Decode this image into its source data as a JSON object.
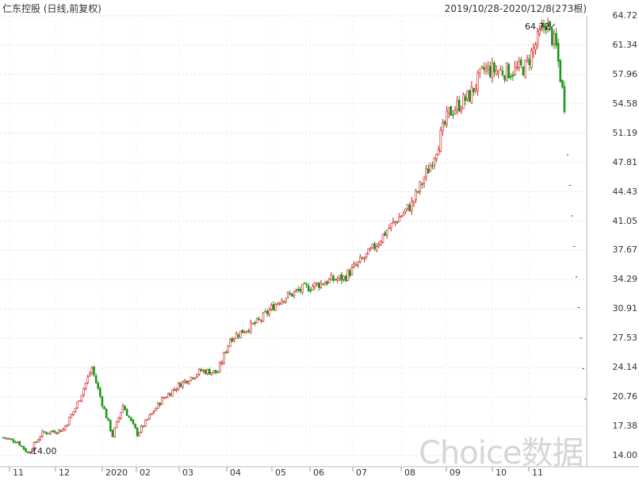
{
  "header": {
    "title": "仁东控股 (日线,前复权)",
    "date_range": "2019/10/28-2020/12/8(273根)"
  },
  "watermark": "Choice数据",
  "annotations": {
    "max_label": "64.72",
    "min_label": "14.00"
  },
  "colors": {
    "up": "#d21e1e",
    "down": "#1a9a1a",
    "grid": "#dddddd",
    "axis_text": "#333333"
  },
  "chart_data": {
    "type": "candlestick",
    "title": "仁东控股 (日线,前复权)",
    "y_ticks": [
      "64.72",
      "61.34",
      "57.96",
      "54.58",
      "51.19",
      "47.81",
      "44.43",
      "41.05",
      "37.67",
      "34.29",
      "30.91",
      "27.53",
      "24.14",
      "20.76",
      "17.38",
      "14.00"
    ],
    "x_ticks": [
      "11",
      "12",
      "2020",
      "02",
      "03",
      "04",
      "05",
      "06",
      "07",
      "08",
      "09",
      "10",
      "11"
    ],
    "ylim": [
      14.0,
      64.72
    ],
    "grid": true,
    "approx_close_path": [
      {
        "x": "2019-10-28",
        "y": 16.1
      },
      {
        "x": "2019-11-08",
        "y": 15.6
      },
      {
        "x": "2019-11-15",
        "y": 14.3
      },
      {
        "x": "2019-11-25",
        "y": 16.6
      },
      {
        "x": "2019-12-10",
        "y": 17.0
      },
      {
        "x": "2019-12-20",
        "y": 19.5
      },
      {
        "x": "2019-12-31",
        "y": 24.1
      },
      {
        "x": "2020-01-08",
        "y": 20.0
      },
      {
        "x": "2020-01-15",
        "y": 16.3
      },
      {
        "x": "2020-01-23",
        "y": 19.8
      },
      {
        "x": "2020-02-03",
        "y": 16.5
      },
      {
        "x": "2020-02-20",
        "y": 20.5
      },
      {
        "x": "2020-03-05",
        "y": 22.3
      },
      {
        "x": "2020-03-20",
        "y": 23.8
      },
      {
        "x": "2020-04-01",
        "y": 23.6
      },
      {
        "x": "2020-04-10",
        "y": 27.5
      },
      {
        "x": "2020-04-30",
        "y": 29.5
      },
      {
        "x": "2020-05-15",
        "y": 32.0
      },
      {
        "x": "2020-06-01",
        "y": 33.2
      },
      {
        "x": "2020-06-20",
        "y": 34.2
      },
      {
        "x": "2020-07-01",
        "y": 34.5
      },
      {
        "x": "2020-07-20",
        "y": 37.5
      },
      {
        "x": "2020-08-01",
        "y": 40.0
      },
      {
        "x": "2020-08-20",
        "y": 43.0
      },
      {
        "x": "2020-09-01",
        "y": 47.5
      },
      {
        "x": "2020-09-15",
        "y": 53.5
      },
      {
        "x": "2020-09-30",
        "y": 55.5
      },
      {
        "x": "2020-10-10",
        "y": 58.5
      },
      {
        "x": "2020-10-30",
        "y": 58.3
      },
      {
        "x": "2020-11-10",
        "y": 58.8
      },
      {
        "x": "2020-11-25",
        "y": 64.0
      },
      {
        "x": "2020-12-02",
        "y": 61.0
      },
      {
        "x": "2020-12-08",
        "y": 54.5
      }
    ]
  }
}
